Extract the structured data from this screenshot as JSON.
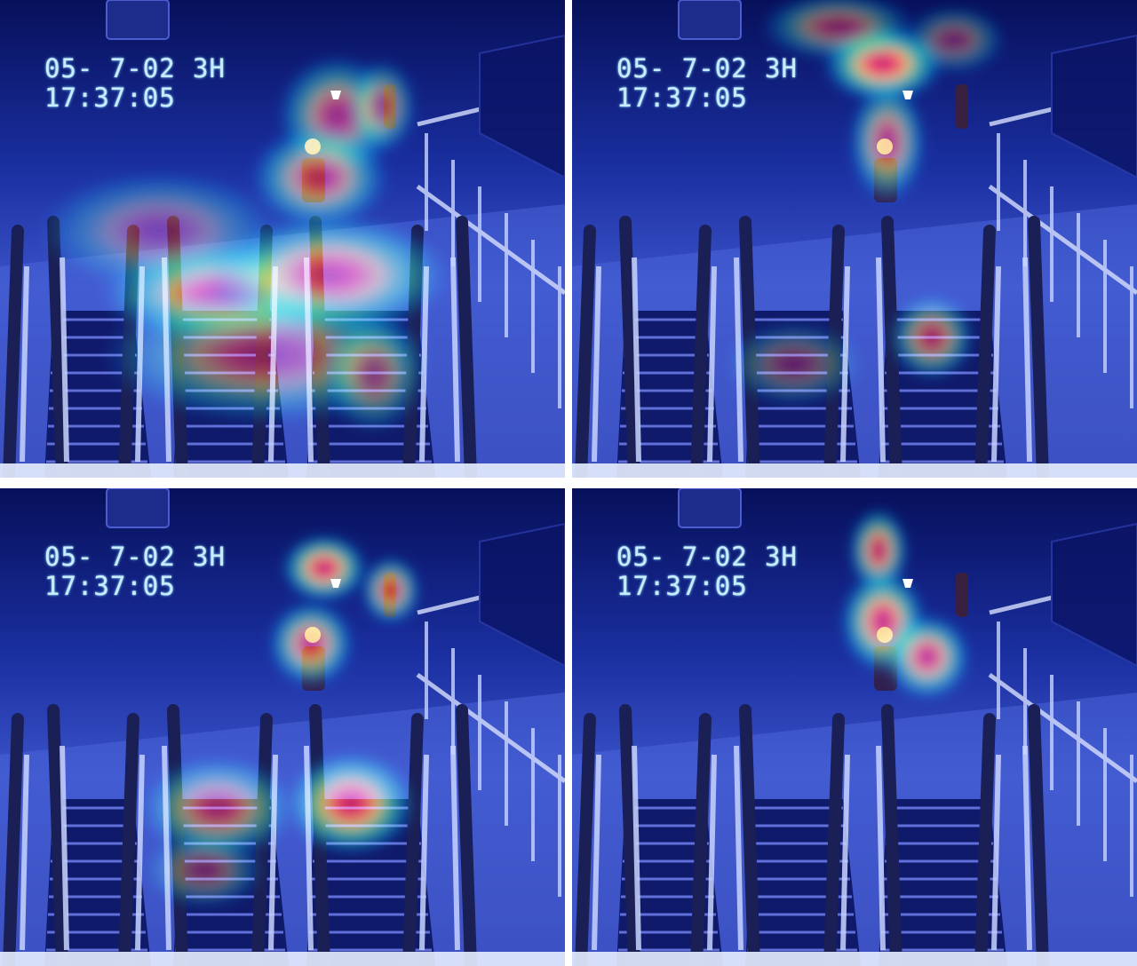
{
  "panels": [
    {
      "date": "05- 7-02",
      "mode": "3H",
      "time": "17:37:05",
      "heat": [
        {
          "cx": 380,
          "cy": 130,
          "rx": 70,
          "ry": 70,
          "w": 0.7
        },
        {
          "cx": 360,
          "cy": 200,
          "rx": 80,
          "ry": 60,
          "w": 0.75
        },
        {
          "cx": 430,
          "cy": 120,
          "rx": 40,
          "ry": 55,
          "w": 0.6
        },
        {
          "cx": 250,
          "cy": 330,
          "rx": 140,
          "ry": 60,
          "w": 0.9
        },
        {
          "cx": 370,
          "cy": 310,
          "rx": 140,
          "ry": 70,
          "w": 0.85
        },
        {
          "cx": 300,
          "cy": 400,
          "rx": 190,
          "ry": 80,
          "w": 0.6
        },
        {
          "cx": 420,
          "cy": 420,
          "rx": 60,
          "ry": 70,
          "w": 0.55
        },
        {
          "cx": 180,
          "cy": 260,
          "rx": 140,
          "ry": 70,
          "w": 0.45
        }
      ]
    },
    {
      "date": "05- 7-02",
      "mode": "3H",
      "time": "17:37:05",
      "heat": [
        {
          "cx": 350,
          "cy": 72,
          "rx": 70,
          "ry": 45,
          "w": 1.0
        },
        {
          "cx": 300,
          "cy": 30,
          "rx": 90,
          "ry": 40,
          "w": 0.55
        },
        {
          "cx": 430,
          "cy": 45,
          "rx": 60,
          "ry": 40,
          "w": 0.45
        },
        {
          "cx": 355,
          "cy": 160,
          "rx": 45,
          "ry": 70,
          "w": 0.75
        },
        {
          "cx": 405,
          "cy": 380,
          "rx": 50,
          "ry": 50,
          "w": 0.7
        },
        {
          "cx": 250,
          "cy": 410,
          "rx": 80,
          "ry": 50,
          "w": 0.4
        }
      ]
    },
    {
      "date": "05- 7-02",
      "mode": "3H",
      "time": "17:37:05",
      "heat": [
        {
          "cx": 365,
          "cy": 90,
          "rx": 50,
          "ry": 40,
          "w": 0.95
        },
        {
          "cx": 440,
          "cy": 115,
          "rx": 35,
          "ry": 40,
          "w": 0.8
        },
        {
          "cx": 350,
          "cy": 175,
          "rx": 50,
          "ry": 50,
          "w": 0.85
        },
        {
          "cx": 245,
          "cy": 360,
          "rx": 90,
          "ry": 60,
          "w": 0.7
        },
        {
          "cx": 395,
          "cy": 355,
          "rx": 75,
          "ry": 60,
          "w": 0.95
        },
        {
          "cx": 230,
          "cy": 430,
          "rx": 70,
          "ry": 45,
          "w": 0.45
        }
      ]
    },
    {
      "date": "05- 7-02",
      "mode": "3H",
      "time": "17:37:05",
      "heat": [
        {
          "cx": 345,
          "cy": 70,
          "rx": 35,
          "ry": 50,
          "w": 0.85
        },
        {
          "cx": 350,
          "cy": 150,
          "rx": 50,
          "ry": 60,
          "w": 0.95
        },
        {
          "cx": 400,
          "cy": 190,
          "rx": 50,
          "ry": 50,
          "w": 0.9
        }
      ]
    }
  ]
}
